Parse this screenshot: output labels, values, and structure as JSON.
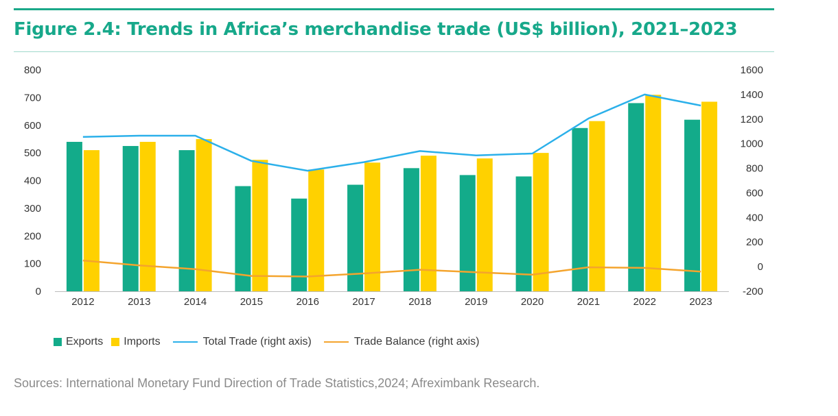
{
  "title": "Figure 2.4: Trends in Africa’s merchandise trade (US$ billion), 2021–2023",
  "sources": "Sources: International Monetary Fund Direction of Trade Statistics,2024; Afreximbank Research.",
  "colors": {
    "accent": "#17a88a",
    "exports": "#13ab8a",
    "imports": "#ffd100",
    "total_trade": "#2bb0ea",
    "trade_balance": "#f4a42d"
  },
  "legend": {
    "exports": "Exports",
    "imports": "Imports",
    "total_trade": "Total Trade (right axis)",
    "trade_balance": "Trade Balance (right axis)"
  },
  "chart_data": {
    "type": "bar",
    "categories": [
      "2012",
      "2013",
      "2014",
      "2015",
      "2016",
      "2017",
      "2018",
      "2019",
      "2020",
      "2021",
      "2022",
      "2023"
    ],
    "series": [
      {
        "name": "Exports",
        "type": "bar",
        "axis": "left",
        "values": [
          540,
          525,
          510,
          380,
          335,
          385,
          445,
          420,
          415,
          590,
          680,
          620
        ]
      },
      {
        "name": "Imports",
        "type": "bar",
        "axis": "left",
        "values": [
          510,
          540,
          550,
          475,
          440,
          465,
          490,
          480,
          500,
          615,
          710,
          685
        ]
      },
      {
        "name": "Total Trade (right axis)",
        "type": "line",
        "axis": "right",
        "values": [
          1055,
          1065,
          1065,
          860,
          780,
          850,
          940,
          905,
          920,
          1205,
          1400,
          1310
        ]
      },
      {
        "name": "Trade Balance (right axis)",
        "type": "line",
        "axis": "right",
        "values": [
          50,
          10,
          -20,
          -75,
          -80,
          -55,
          -25,
          -45,
          -65,
          -5,
          -10,
          -40
        ]
      }
    ],
    "ylim": [
      0,
      800
    ],
    "y_ticks": [
      "800",
      "700",
      "600",
      "500",
      "400",
      "300",
      "200",
      "100",
      "0"
    ],
    "y2lim": [
      -200,
      1600
    ],
    "y2_ticks": [
      "1600",
      "1400",
      "1200",
      "1000",
      "800",
      "600",
      "400",
      "200",
      "0",
      "-200"
    ],
    "grid": false,
    "legend_position": "bottom-left"
  }
}
